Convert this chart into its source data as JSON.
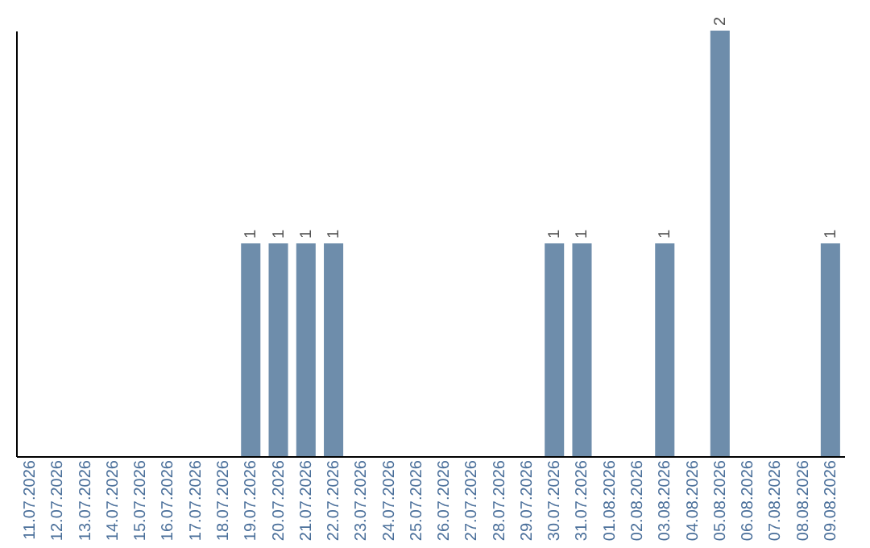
{
  "chart_data": {
    "type": "bar",
    "categories": [
      "11.07.2026",
      "12.07.2026",
      "13.07.2026",
      "14.07.2026",
      "15.07.2026",
      "16.07.2026",
      "17.07.2026",
      "18.07.2026",
      "19.07.2026",
      "20.07.2026",
      "21.07.2026",
      "22.07.2026",
      "23.07.2026",
      "24.07.2026",
      "25.07.2026",
      "26.07.2026",
      "27.07.2026",
      "28.07.2026",
      "29.07.2026",
      "30.07.2026",
      "31.07.2026",
      "01.08.2026",
      "02.08.2026",
      "03.08.2026",
      "04.08.2026",
      "05.08.2026",
      "06.08.2026",
      "07.08.2026",
      "08.08.2026",
      "09.08.2026"
    ],
    "values": [
      0,
      0,
      0,
      0,
      0,
      0,
      0,
      0,
      1,
      1,
      1,
      1,
      0,
      0,
      0,
      0,
      0,
      0,
      0,
      1,
      1,
      0,
      0,
      1,
      0,
      2,
      0,
      0,
      0,
      1
    ],
    "value_labels": [
      null,
      null,
      null,
      null,
      null,
      null,
      null,
      null,
      "1",
      "1",
      "1",
      "1",
      null,
      null,
      null,
      null,
      null,
      null,
      null,
      "1",
      "1",
      null,
      null,
      "1",
      null,
      "2",
      null,
      null,
      null,
      "1"
    ],
    "color": "#6e8dab",
    "tick_labels": "x",
    "grid": false
  }
}
